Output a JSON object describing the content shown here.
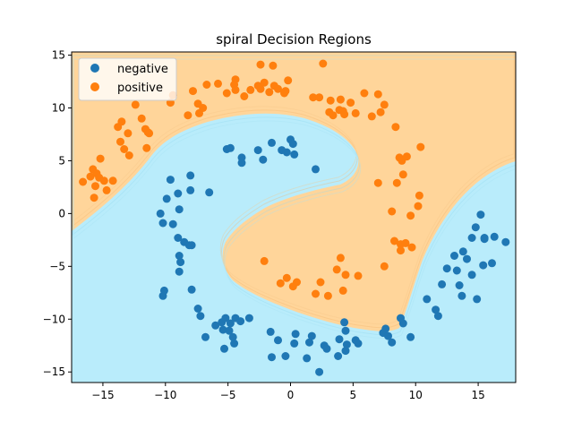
{
  "chart_data": {
    "type": "scatter",
    "title": "spiral Decision Regions",
    "xlabel": "",
    "ylabel": "",
    "xlim": [
      -17.5,
      18
    ],
    "ylim": [
      -16,
      15.3
    ],
    "xticks": [
      "−15",
      "−10",
      "−5",
      "0",
      "5",
      "10",
      "15"
    ],
    "xtick_values": [
      -15,
      -10,
      -5,
      0,
      5,
      10,
      15
    ],
    "yticks": [
      "15",
      "10",
      "5",
      "0",
      "−5",
      "−10",
      "−15"
    ],
    "ytick_values": [
      15,
      10,
      5,
      0,
      -5,
      -10,
      -15
    ],
    "legend_position": "upper-left",
    "grid": false,
    "region_colors": {
      "negative": "#b9ecfb",
      "positive": "#ffd59a"
    },
    "series": [
      {
        "name": "negative",
        "color": "#1f77b4",
        "points": [
          [
            -10.4,
            0.0
          ],
          [
            -10.2,
            -0.9
          ],
          [
            -9.9,
            1.4
          ],
          [
            -9.6,
            3.2
          ],
          [
            -9.4,
            -1.0
          ],
          [
            -9.0,
            1.9
          ],
          [
            -8.9,
            0.4
          ],
          [
            -9.0,
            -2.3
          ],
          [
            -8.9,
            -4.0
          ],
          [
            -8.8,
            -4.6
          ],
          [
            -8.9,
            -5.5
          ],
          [
            -8.5,
            -2.7
          ],
          [
            -8.0,
            2.2
          ],
          [
            -8.0,
            3.6
          ],
          [
            -8.1,
            -3.0
          ],
          [
            -7.9,
            -3.0
          ],
          [
            -7.9,
            -7.2
          ],
          [
            -7.4,
            -9.0
          ],
          [
            -7.2,
            -9.7
          ],
          [
            -6.8,
            -11.7
          ],
          [
            -6.5,
            2.0
          ],
          [
            -6.0,
            -10.6
          ],
          [
            -5.5,
            -10.3
          ],
          [
            -5.4,
            -11.0
          ],
          [
            -5.3,
            -12.8
          ],
          [
            -5.2,
            -9.9
          ],
          [
            -4.9,
            -11.1
          ],
          [
            -4.8,
            -10.4
          ],
          [
            -4.6,
            -11.7
          ],
          [
            -4.5,
            -12.3
          ],
          [
            -4.4,
            -9.9
          ],
          [
            -4.0,
            -10.2
          ],
          [
            -3.3,
            -9.9
          ],
          [
            -5.1,
            6.1
          ],
          [
            -4.8,
            6.2
          ],
          [
            -3.9,
            5.3
          ],
          [
            -3.9,
            4.8
          ],
          [
            -2.6,
            6.0
          ],
          [
            -2.2,
            5.1
          ],
          [
            -1.5,
            6.7
          ],
          [
            -0.7,
            6.0
          ],
          [
            -0.3,
            5.8
          ],
          [
            0.0,
            7.0
          ],
          [
            0.2,
            6.6
          ],
          [
            0.3,
            5.6
          ],
          [
            2.0,
            4.2
          ],
          [
            -10.2,
            -7.8
          ],
          [
            -10.1,
            -7.3
          ],
          [
            -1.6,
            -11.2
          ],
          [
            -1.5,
            -13.6
          ],
          [
            -1.0,
            -12.0
          ],
          [
            -0.4,
            -13.5
          ],
          [
            0.4,
            -11.4
          ],
          [
            0.3,
            -12.3
          ],
          [
            1.3,
            -13.7
          ],
          [
            1.5,
            -12.2
          ],
          [
            1.7,
            -11.6
          ],
          [
            2.3,
            -15.0
          ],
          [
            2.7,
            -12.5
          ],
          [
            2.9,
            -12.8
          ],
          [
            3.8,
            -13.5
          ],
          [
            3.9,
            -11.9
          ],
          [
            4.3,
            -10.3
          ],
          [
            4.4,
            -11.1
          ],
          [
            4.4,
            -13.0
          ],
          [
            4.5,
            -12.4
          ],
          [
            5.2,
            -12.0
          ],
          [
            5.4,
            -12.3
          ],
          [
            7.4,
            -11.3
          ],
          [
            7.6,
            -10.9
          ],
          [
            7.8,
            -11.6
          ],
          [
            8.1,
            -12.2
          ],
          [
            8.8,
            -9.9
          ],
          [
            9.0,
            -10.4
          ],
          [
            9.6,
            -11.7
          ],
          [
            10.9,
            -8.1
          ],
          [
            11.6,
            -9.1
          ],
          [
            11.8,
            -9.7
          ],
          [
            12.1,
            -6.7
          ],
          [
            12.5,
            -5.2
          ],
          [
            13.1,
            -4.0
          ],
          [
            13.3,
            -5.4
          ],
          [
            13.5,
            -6.8
          ],
          [
            13.7,
            -7.8
          ],
          [
            13.8,
            -3.6
          ],
          [
            14.1,
            -4.3
          ],
          [
            14.5,
            -5.8
          ],
          [
            14.5,
            -2.3
          ],
          [
            14.8,
            -1.3
          ],
          [
            14.9,
            -8.1
          ],
          [
            15.2,
            -0.1
          ],
          [
            15.4,
            -4.9
          ],
          [
            15.5,
            -2.3
          ],
          [
            15.5,
            -2.4
          ],
          [
            16.1,
            -4.7
          ],
          [
            16.3,
            -2.2
          ],
          [
            17.2,
            -2.7
          ]
        ]
      },
      {
        "name": "positive",
        "color": "#ff7f0e",
        "points": [
          [
            -16.6,
            3.0
          ],
          [
            -16.0,
            3.5
          ],
          [
            -15.8,
            4.2
          ],
          [
            -15.7,
            1.5
          ],
          [
            -15.6,
            2.6
          ],
          [
            -15.5,
            3.8
          ],
          [
            -15.3,
            3.4
          ],
          [
            -15.2,
            5.2
          ],
          [
            -14.9,
            3.1
          ],
          [
            -14.7,
            2.2
          ],
          [
            -14.2,
            3.1
          ],
          [
            -13.8,
            8.2
          ],
          [
            -13.6,
            6.8
          ],
          [
            -13.5,
            8.7
          ],
          [
            -13.3,
            6.1
          ],
          [
            -13.0,
            7.6
          ],
          [
            -12.9,
            5.5
          ],
          [
            -12.4,
            10.3
          ],
          [
            -11.9,
            9.0
          ],
          [
            -11.5,
            6.2
          ],
          [
            -11.6,
            8.0
          ],
          [
            -11.4,
            7.7
          ],
          [
            -11.3,
            7.6
          ],
          [
            -9.6,
            10.5
          ],
          [
            -9.4,
            11.2
          ],
          [
            -8.2,
            9.3
          ],
          [
            -7.8,
            11.6
          ],
          [
            -7.4,
            10.4
          ],
          [
            -7.3,
            9.5
          ],
          [
            -7.0,
            10.0
          ],
          [
            -6.7,
            12.2
          ],
          [
            -5.8,
            12.3
          ],
          [
            -5.1,
            11.4
          ],
          [
            -4.4,
            12.7
          ],
          [
            -4.5,
            12.2
          ],
          [
            -4.4,
            11.7
          ],
          [
            -3.7,
            11.1
          ],
          [
            -3.2,
            11.7
          ],
          [
            -2.6,
            12.1
          ],
          [
            -2.4,
            11.8
          ],
          [
            -2.4,
            14.1
          ],
          [
            -2.1,
            12.4
          ],
          [
            -1.7,
            11.5
          ],
          [
            -1.4,
            14.0
          ],
          [
            -1.3,
            12.1
          ],
          [
            -1.0,
            11.8
          ],
          [
            -0.5,
            11.4
          ],
          [
            -0.4,
            11.6
          ],
          [
            -0.2,
            12.6
          ],
          [
            2.6,
            14.2
          ],
          [
            1.8,
            11.0
          ],
          [
            2.3,
            11.0
          ],
          [
            3.2,
            10.7
          ],
          [
            3.1,
            9.6
          ],
          [
            3.4,
            9.3
          ],
          [
            3.9,
            9.8
          ],
          [
            4.0,
            10.8
          ],
          [
            4.2,
            9.7
          ],
          [
            4.3,
            9.4
          ],
          [
            4.8,
            10.5
          ],
          [
            5.2,
            9.5
          ],
          [
            5.9,
            11.4
          ],
          [
            6.5,
            9.2
          ],
          [
            7.0,
            11.3
          ],
          [
            7.2,
            9.6
          ],
          [
            7.5,
            10.3
          ],
          [
            8.4,
            8.2
          ],
          [
            8.7,
            5.3
          ],
          [
            8.9,
            5.0
          ],
          [
            9.3,
            5.4
          ],
          [
            9.0,
            3.7
          ],
          [
            8.5,
            2.9
          ],
          [
            10.4,
            6.3
          ],
          [
            10.3,
            1.7
          ],
          [
            10.2,
            0.7
          ],
          [
            9.6,
            -0.2
          ],
          [
            8.1,
            0.2
          ],
          [
            8.8,
            -2.9
          ],
          [
            8.8,
            -3.5
          ],
          [
            8.3,
            -2.6
          ],
          [
            9.2,
            -2.8
          ],
          [
            9.7,
            -3.2
          ],
          [
            7.5,
            -5.0
          ],
          [
            7.0,
            2.9
          ],
          [
            4.0,
            -4.2
          ],
          [
            4.4,
            -5.8
          ],
          [
            3.7,
            -5.3
          ],
          [
            4.2,
            -7.3
          ],
          [
            3.0,
            -7.8
          ],
          [
            2.4,
            -6.5
          ],
          [
            5.4,
            -5.9
          ],
          [
            0.5,
            -6.5
          ],
          [
            0.2,
            -6.9
          ],
          [
            -0.3,
            -6.1
          ],
          [
            -0.8,
            -6.6
          ],
          [
            -2.1,
            -4.5
          ],
          [
            2.0,
            -7.6
          ]
        ]
      }
    ]
  }
}
